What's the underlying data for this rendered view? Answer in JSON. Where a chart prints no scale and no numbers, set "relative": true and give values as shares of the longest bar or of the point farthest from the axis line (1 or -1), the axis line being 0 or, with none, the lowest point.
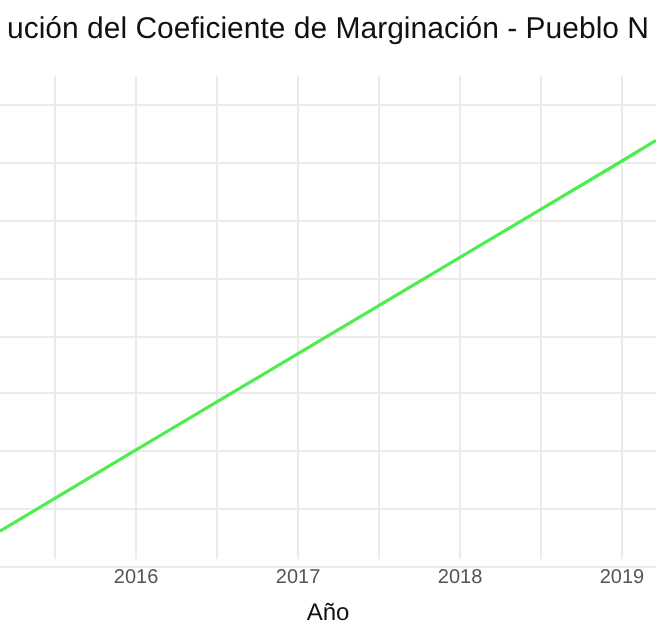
{
  "chart_data": {
    "type": "line",
    "title": "ución del Coeficiente de Marginación - Pueblo N",
    "xlabel": "Año",
    "relative": true,
    "x": [
      2015.16,
      2016,
      2017,
      2018,
      2019,
      2019.21
    ],
    "series": [
      {
        "color": "#4ced4c",
        "values": [
          0.067,
          0.261,
          0.491,
          0.721,
          0.951,
          1
        ]
      }
    ],
    "xlim": [
      2015.16,
      2019.21
    ],
    "xticks": [
      {
        "value": 2015.5,
        "label": null
      },
      2016,
      {
        "value": 2016.5,
        "label": null
      },
      2017,
      {
        "value": 2017.5,
        "label": null
      },
      2018,
      {
        "value": 2018.5,
        "label": null
      },
      2019
    ],
    "grid": true,
    "legend": false,
    "marker": "none",
    "line_style": "solid"
  }
}
